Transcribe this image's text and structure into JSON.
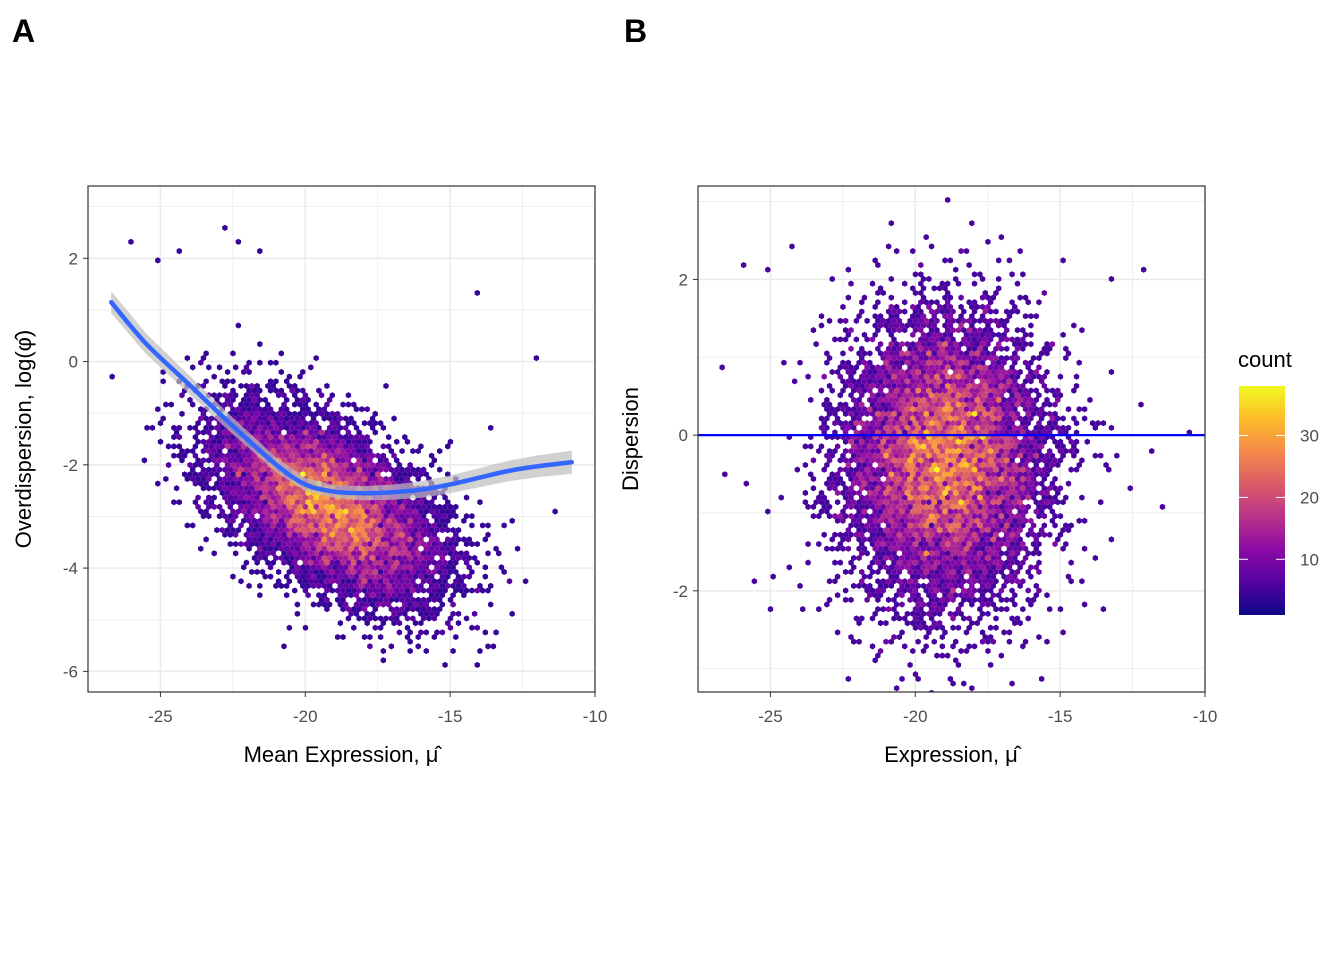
{
  "panels": [
    {
      "letter": "A",
      "xlabel": "Mean Expression, μ̂",
      "ylabel": "Overdispersion, log(φ̂)"
    },
    {
      "letter": "B",
      "xlabel": "Expression, μ̂",
      "ylabel": "Dispersion"
    }
  ],
  "legend": {
    "title": "count",
    "ticks": [
      "10",
      "20",
      "30"
    ]
  },
  "colors": {
    "gradient": [
      "#0d0887",
      "#5402a3",
      "#8b0aa5",
      "#b93289",
      "#db5c68",
      "#f48849",
      "#febd2a",
      "#f0f921"
    ],
    "smooth_line": "#3366ff",
    "ribbon": "#bdbdbd",
    "reference_line": "#0000ff",
    "grid": "#ebebeb",
    "panel_border": "#333333"
  },
  "chart_data": [
    {
      "type": "heatmap",
      "subtype": "hexbin",
      "xlabel": "Mean Expression, μ̂",
      "ylabel": "Overdispersion, log(φ̂)",
      "xlim": [
        -27.5,
        -10
      ],
      "ylim": [
        -6.4,
        3.4
      ],
      "xticks": [
        -25,
        -20,
        -15,
        -10
      ],
      "yticks": [
        2,
        0,
        -2,
        -4,
        -6
      ],
      "grid": true,
      "density": {
        "center": [
          -19.2,
          -2.8
        ],
        "spread": [
          1.9,
          0.9
        ],
        "correlation": -0.55,
        "max_count": 38
      },
      "smooth_line": {
        "x": [
          -26.7,
          -25.5,
          -24.0,
          -22.5,
          -21.0,
          -20.0,
          -19.0,
          -18.0,
          -17.0,
          -16.0,
          -15.0,
          -14.0,
          -13.0,
          -12.0,
          -10.8
        ],
        "y": [
          1.15,
          0.35,
          -0.45,
          -1.25,
          -2.0,
          -2.38,
          -2.52,
          -2.55,
          -2.53,
          -2.48,
          -2.38,
          -2.25,
          -2.12,
          -2.03,
          -1.95
        ]
      },
      "outliers": [
        [
          -26,
          2.3
        ],
        [
          -25.1,
          2.0
        ],
        [
          -24.4,
          2.1
        ],
        [
          -22.8,
          2.6
        ],
        [
          -22.3,
          2.3
        ],
        [
          -21.5,
          2.1
        ],
        [
          -26.6,
          -0.3
        ],
        [
          -25.5,
          -1.9
        ],
        [
          -25.1,
          -2.4
        ],
        [
          -24.9,
          -0.2
        ],
        [
          -23.4,
          -2.7
        ],
        [
          -14.1,
          1.3
        ],
        [
          -12,
          0.05
        ],
        [
          -11.3,
          -2.9
        ],
        [
          -13.6,
          -1.3
        ],
        [
          -14.3,
          -3.0
        ],
        [
          -15.2,
          -2.8
        ],
        [
          -18.3,
          -4.85
        ],
        [
          -20.2,
          -4.1
        ],
        [
          -12.8,
          -3.1
        ]
      ]
    },
    {
      "type": "heatmap",
      "subtype": "hexbin",
      "xlabel": "Expression, μ̂",
      "ylabel": "Dispersion",
      "xlim": [
        -27.5,
        -10
      ],
      "ylim": [
        -3.3,
        3.2
      ],
      "xticks": [
        -25,
        -20,
        -15,
        -10
      ],
      "yticks": [
        2,
        0,
        -2
      ],
      "grid": true,
      "density": {
        "center": [
          -19.0,
          -0.3
        ],
        "spread": [
          1.7,
          0.9
        ],
        "correlation": 0.0,
        "max_count": 38
      },
      "reference_line": {
        "y": 0
      },
      "outliers": [
        [
          -26,
          2.2
        ],
        [
          -25,
          2.1
        ],
        [
          -24.3,
          2.45
        ],
        [
          -26.7,
          0.9
        ],
        [
          -26.5,
          -0.5
        ],
        [
          -25.5,
          -1.85
        ],
        [
          -25,
          -2.25
        ],
        [
          -24.9,
          -1.8
        ],
        [
          -23.1,
          -2.15
        ],
        [
          -21.3,
          -2.9
        ],
        [
          -21.1,
          -2.65
        ],
        [
          -13.2,
          2.0
        ],
        [
          -12.1,
          2.15
        ],
        [
          -10.6,
          0.05
        ],
        [
          -11.9,
          -0.2
        ],
        [
          -11.4,
          -0.9
        ],
        [
          -12.5,
          -0.7
        ],
        [
          -13.8,
          -1.6
        ],
        [
          -14.1,
          -1.1
        ],
        [
          -12.2,
          0.4
        ]
      ]
    }
  ]
}
